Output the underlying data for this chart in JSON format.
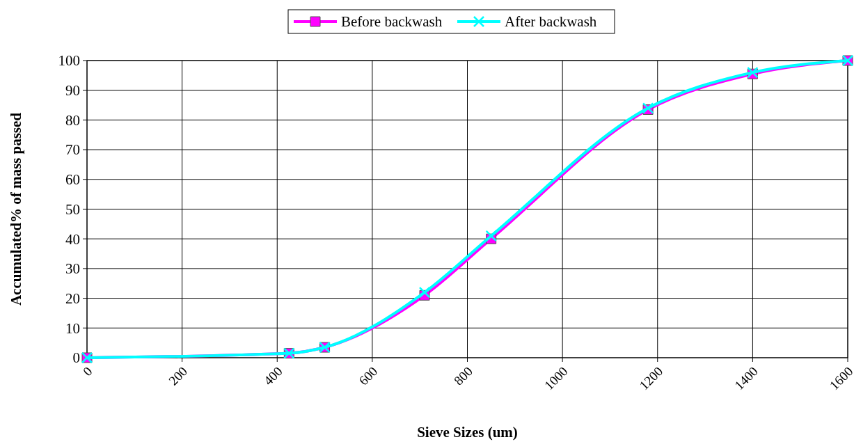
{
  "chart_data": {
    "type": "line",
    "xlabel": "Sieve Sizes (um)",
    "ylabel": "Accumulated% of mass  passed",
    "x": [
      0,
      425,
      500,
      710,
      850,
      1180,
      1400,
      1600
    ],
    "series": [
      {
        "name": "Before backwash",
        "color": "#ff00ff",
        "marker": "square",
        "values": [
          0,
          1.5,
          3.5,
          21,
          40,
          83.5,
          95.5,
          100
        ]
      },
      {
        "name": "After backwash",
        "color": "#00ffff",
        "marker": "cross",
        "values": [
          0,
          1.5,
          3.5,
          22,
          41,
          84,
          96,
          100
        ]
      }
    ],
    "xlim": [
      0,
      1600
    ],
    "xticks": [
      0,
      200,
      400,
      600,
      800,
      1000,
      1200,
      1400,
      1600
    ],
    "ylim": [
      0,
      100
    ],
    "yticks": [
      0,
      10,
      20,
      30,
      40,
      50,
      60,
      70,
      80,
      90,
      100
    ],
    "grid": true,
    "legend": "top",
    "line_style": "solid"
  }
}
